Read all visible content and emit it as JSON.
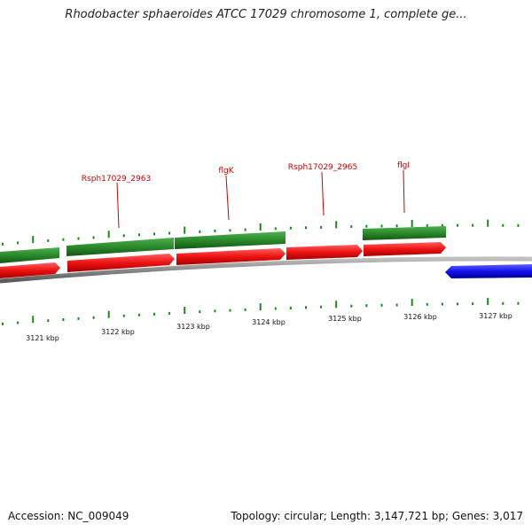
{
  "title": "Rhodobacter sphaeroides ATCC 17029 chromosome 1, complete ge...",
  "footer": {
    "accession": "Accession: NC_009049",
    "summary": "Topology: circular; Length: 3,147,721 bp; Genes: 3,017"
  },
  "colors": {
    "forward_gene": "#2e8b2e",
    "reverse_gene": "#ee1111",
    "other_gene": "#1111ee",
    "backbone": "#909090",
    "tick": "#1a8a1a",
    "label": "#cc0000"
  },
  "gene_labels": [
    {
      "name": "Rsph17029_2963"
    },
    {
      "name": "flgK"
    },
    {
      "name": "Rsph17029_2965"
    },
    {
      "name": "flgI"
    }
  ],
  "kbp_labels": [
    "3121 kbp",
    "3122 kbp",
    "3123 kbp",
    "3124 kbp",
    "3125 kbp",
    "3126 kbp",
    "3127 kbp"
  ]
}
